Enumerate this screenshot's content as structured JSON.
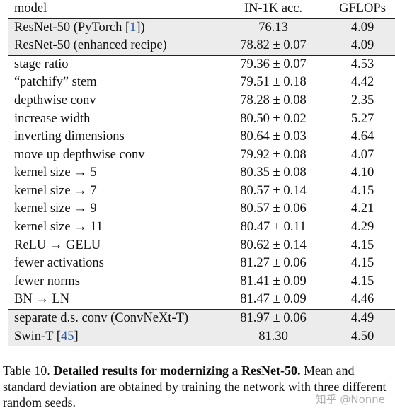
{
  "table": {
    "headers": [
      "model",
      "IN-1K acc.",
      "GFLOPs"
    ],
    "rows": [
      {
        "model": "ResNet-50 (PyTorch [",
        "cite": "1",
        "model_suffix": "])",
        "acc": "76.13",
        "gflops": "4.09",
        "shaded": true
      },
      {
        "model": "ResNet-50 (enhanced recipe)",
        "acc": "78.82 ± 0.07",
        "gflops": "4.09",
        "shaded": true
      },
      {
        "model": "stage ratio",
        "acc": "79.36 ± 0.07",
        "gflops": "4.53"
      },
      {
        "model": "“patchify” stem",
        "acc": "79.51 ± 0.18",
        "gflops": "4.42"
      },
      {
        "model": "depthwise conv",
        "acc": "78.28 ± 0.08",
        "gflops": "2.35"
      },
      {
        "model": "increase width",
        "acc": "80.50 ± 0.02",
        "gflops": "5.27"
      },
      {
        "model": "inverting dimensions",
        "acc": "80.64 ± 0.03",
        "gflops": "4.64"
      },
      {
        "model": "move up depthwise conv",
        "acc": "79.92 ± 0.08",
        "gflops": "4.07"
      },
      {
        "model": "kernel size → 5",
        "acc": "80.35 ± 0.08",
        "gflops": "4.10"
      },
      {
        "model": "kernel size → 7",
        "acc": "80.57 ± 0.14",
        "gflops": "4.15"
      },
      {
        "model": "kernel size → 9",
        "acc": "80.57 ± 0.06",
        "gflops": "4.21"
      },
      {
        "model": "kernel size → 11",
        "acc": "80.47 ± 0.11",
        "gflops": "4.29"
      },
      {
        "model": "ReLU → GELU",
        "acc": "80.62 ± 0.14",
        "gflops": "4.15"
      },
      {
        "model": "fewer activations",
        "acc": "81.27 ± 0.06",
        "gflops": "4.15"
      },
      {
        "model": "fewer norms",
        "acc": "81.41 ± 0.09",
        "gflops": "4.15"
      },
      {
        "model": "BN → LN",
        "acc": "81.47 ± 0.09",
        "gflops": "4.46"
      },
      {
        "model": "separate d.s. conv (ConvNeXt-T)",
        "acc": "81.97 ± 0.06",
        "gflops": "4.49",
        "shaded": true
      },
      {
        "model": "Swin-T [",
        "cite": "45",
        "model_suffix": "]",
        "acc": "81.30",
        "gflops": "4.50",
        "shaded": true
      }
    ]
  },
  "caption": {
    "prefix": "Table 10.",
    "bold": "Detailed results for modernizing a ResNet-50.",
    "rest": "Mean and standard deviation are obtained by training the network with three different random seeds."
  },
  "watermark": "知乎 @Nonne",
  "colors": {
    "shade": "#ececec",
    "cite": "#2a5db0",
    "text": "#111111"
  }
}
